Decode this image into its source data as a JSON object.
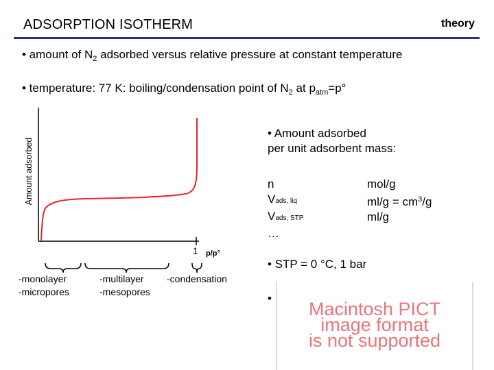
{
  "header": {
    "title": "ADSORPTION ISOTHERM",
    "tag": "theory",
    "rule_color": "#2a2f8a"
  },
  "bullets": [
    {
      "pre": "• amount of N",
      "sub": "2",
      "post": " adsorbed versus relative pressure at constant temperature"
    },
    {
      "pre": "• temperature: 77 K: boiling/condensation point of N",
      "sub": "2",
      "mid": " at p",
      "sub2": "atm",
      "post": "=p°"
    }
  ],
  "diagram": {
    "y_axis_label": "Amount adsorbed",
    "x_tick_label": "1",
    "x_axis_label": "p/p°",
    "curve_color": "#e8252d",
    "regions": [
      {
        "lines": [
          "-monolayer",
          "-micropores"
        ]
      },
      {
        "lines": [
          "-multilayer",
          "-mesopores"
        ]
      },
      {
        "lines": [
          "-condensation"
        ]
      }
    ]
  },
  "right_panel": {
    "amount_line1": "• Amount adsorbed",
    "amount_line2": "per unit adsorbent mass:",
    "quantities": [
      {
        "main": "n",
        "sub": ""
      },
      {
        "main": "V",
        "sub": "ads, liq"
      },
      {
        "main": "V",
        "sub": "ads, STP"
      },
      {
        "main": "…",
        "sub": ""
      }
    ],
    "units": [
      {
        "text": "mol/g"
      },
      {
        "pre": "ml/g = cm",
        "sup": "3",
        "post": "/g"
      },
      {
        "text": "ml/g"
      }
    ],
    "stp": "• STP = 0 °C, 1 bar",
    "bullet4": "•"
  },
  "placeholder": {
    "lines": [
      "Macintosh PICT",
      "image format",
      "is not supported"
    ],
    "color": "#e8757a"
  }
}
